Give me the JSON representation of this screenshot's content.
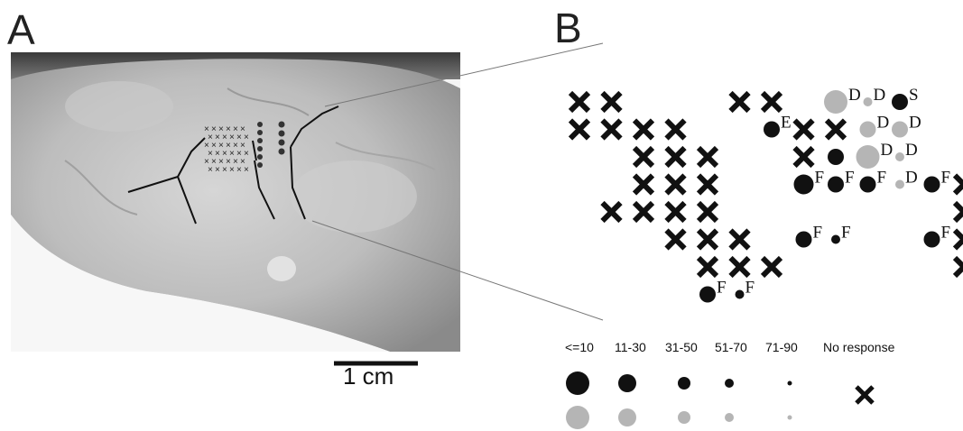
{
  "panels": {
    "a_label": "A",
    "b_label": "B"
  },
  "scale_bar": {
    "label": "1 cm"
  },
  "legend": {
    "bins": [
      "<=10",
      "11-30",
      "31-50",
      "51-70",
      "71-90",
      "No response"
    ]
  },
  "markers": [
    {
      "kind": "x",
      "c": 0,
      "r": 0
    },
    {
      "kind": "x",
      "c": 1,
      "r": 0
    },
    {
      "kind": "x",
      "c": 0,
      "r": 1
    },
    {
      "kind": "x",
      "c": 1,
      "r": 1
    },
    {
      "kind": "x",
      "c": 2,
      "r": 1
    },
    {
      "kind": "x",
      "c": 3,
      "r": 1
    },
    {
      "kind": "x",
      "c": 2,
      "r": 2
    },
    {
      "kind": "x",
      "c": 3,
      "r": 2
    },
    {
      "kind": "x",
      "c": 4,
      "r": 2
    },
    {
      "kind": "x",
      "c": 2,
      "r": 3
    },
    {
      "kind": "x",
      "c": 3,
      "r": 3
    },
    {
      "kind": "x",
      "c": 4,
      "r": 3
    },
    {
      "kind": "x",
      "c": 1,
      "r": 4
    },
    {
      "kind": "x",
      "c": 2,
      "r": 4
    },
    {
      "kind": "x",
      "c": 3,
      "r": 4
    },
    {
      "kind": "x",
      "c": 4,
      "r": 4
    },
    {
      "kind": "x",
      "c": 3,
      "r": 5
    },
    {
      "kind": "x",
      "c": 4,
      "r": 5
    },
    {
      "kind": "x",
      "c": 5,
      "r": 5
    },
    {
      "kind": "x",
      "c": 4,
      "r": 6
    },
    {
      "kind": "x",
      "c": 5,
      "r": 6
    },
    {
      "kind": "x",
      "c": 6,
      "r": 6
    },
    {
      "kind": "x",
      "c": 5,
      "r": 0
    },
    {
      "kind": "x",
      "c": 6,
      "r": 0
    },
    {
      "kind": "x",
      "c": 7,
      "r": 1
    },
    {
      "kind": "x",
      "c": 8,
      "r": 1
    },
    {
      "kind": "x",
      "c": 7,
      "r": 2
    },
    {
      "kind": "x",
      "c": 12,
      "r": 3
    },
    {
      "kind": "x",
      "c": 12,
      "r": 4
    },
    {
      "kind": "x",
      "c": 12,
      "r": 5
    },
    {
      "kind": "x",
      "c": 12,
      "r": 6
    },
    {
      "kind": "dot",
      "c": 6,
      "r": 1,
      "size": 2,
      "color": "black",
      "label": "E"
    },
    {
      "kind": "dot",
      "c": 8,
      "r": 0,
      "size": 4,
      "color": "gray",
      "label": "D"
    },
    {
      "kind": "dot",
      "c": 9,
      "r": 0,
      "size": 1,
      "color": "gray",
      "label": "D"
    },
    {
      "kind": "dot",
      "c": 10,
      "r": 0,
      "size": 2,
      "color": "black",
      "label": "S"
    },
    {
      "kind": "dot",
      "c": 9,
      "r": 1,
      "size": 2,
      "color": "gray",
      "label": "D"
    },
    {
      "kind": "dot",
      "c": 10,
      "r": 1,
      "size": 2,
      "color": "gray",
      "label": "D"
    },
    {
      "kind": "dot",
      "c": 9,
      "r": 2,
      "size": 4,
      "color": "gray",
      "label": "D"
    },
    {
      "kind": "dot",
      "c": 10,
      "r": 2,
      "size": 1,
      "color": "gray",
      "label": "D"
    },
    {
      "kind": "dot",
      "c": 10,
      "r": 3,
      "size": 1,
      "color": "gray",
      "label": "D"
    },
    {
      "kind": "dot",
      "c": 8,
      "r": 2,
      "size": 2,
      "color": "black",
      "label": ""
    },
    {
      "kind": "dot",
      "c": 7,
      "r": 3,
      "size": 3,
      "color": "black",
      "label": "F"
    },
    {
      "kind": "dot",
      "c": 8,
      "r": 3,
      "size": 2,
      "color": "black",
      "label": "F"
    },
    {
      "kind": "dot",
      "c": 9,
      "r": 3,
      "size": 2,
      "color": "black",
      "label": "F"
    },
    {
      "kind": "dot",
      "c": 11,
      "r": 3,
      "size": 2,
      "color": "black",
      "label": "F"
    },
    {
      "kind": "dot",
      "c": 7,
      "r": 5,
      "size": 2,
      "color": "black",
      "label": "F"
    },
    {
      "kind": "dot",
      "c": 8,
      "r": 5,
      "size": 1,
      "color": "black",
      "label": "F"
    },
    {
      "kind": "dot",
      "c": 11,
      "r": 5,
      "size": 2,
      "color": "black",
      "label": "F"
    },
    {
      "kind": "dot",
      "c": 4,
      "r": 7,
      "size": 2,
      "color": "black",
      "label": "F"
    },
    {
      "kind": "dot",
      "c": 5,
      "r": 7,
      "size": 1,
      "color": "black",
      "label": "F"
    }
  ]
}
